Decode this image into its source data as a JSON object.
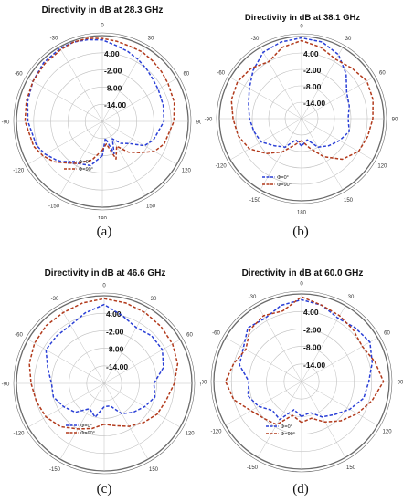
{
  "captions": [
    "(a)",
    "(b)",
    "(c)",
    "(d)"
  ],
  "colors": {
    "phi0": "#2a3fd6",
    "phi90": "#b23a1c",
    "grid": "#bfbfbf",
    "ring": "#6a6a6a"
  },
  "chart_data": [
    {
      "type": "polar-line",
      "title": "Directivity in dB at 28.3 GHz",
      "radial_labels": [
        "4.00",
        "-2.00",
        "-8.00",
        "-14.00"
      ],
      "r_range_db": [
        -20,
        10
      ],
      "angle_labels": [
        "0",
        "30",
        "60",
        "90",
        "120",
        "150",
        "180",
        "-150",
        "-120",
        "-90",
        "-60",
        "-30"
      ],
      "legend": [
        "Φ=0°",
        "Φ=90°"
      ],
      "series": [
        {
          "name": "Φ=0°",
          "theta_deg": [
            -180,
            -165,
            -150,
            -140,
            -130,
            -120,
            -110,
            -90,
            -75,
            -60,
            -45,
            -30,
            -20,
            -10,
            0,
            10,
            20,
            30,
            40,
            50,
            60,
            75,
            90,
            110,
            120,
            130,
            140,
            150,
            160,
            170,
            180
          ],
          "r_db": [
            -8,
            -4,
            -3,
            -1,
            1,
            3,
            4.5,
            6,
            7,
            8,
            9,
            9.5,
            9.5,
            9,
            8.5,
            7,
            6,
            5,
            4,
            3,
            2.5,
            2,
            1.5,
            -1,
            -3,
            -8,
            -10,
            -13,
            -8,
            -14,
            -8
          ]
        },
        {
          "name": "Φ=90°",
          "theta_deg": [
            -180,
            -165,
            -150,
            -140,
            -130,
            -120,
            -110,
            -90,
            -75,
            -60,
            -45,
            -30,
            -20,
            -10,
            0,
            10,
            20,
            30,
            40,
            50,
            60,
            75,
            90,
            110,
            120,
            130,
            140,
            150,
            160,
            170,
            180
          ],
          "r_db": [
            -10,
            -6,
            -3,
            -1,
            2,
            4,
            5.5,
            7,
            7.5,
            8,
            8.5,
            9,
            9.5,
            9.5,
            9,
            8.5,
            8,
            8,
            7.5,
            7,
            6.5,
            6,
            5,
            3,
            1,
            -3,
            -6,
            -10,
            -6,
            -12,
            -10
          ]
        }
      ]
    },
    {
      "type": "polar-line",
      "title": "Directivity in dB at 38.1 GHz",
      "radial_labels": [
        "4.00",
        "-2.00",
        "-8.00",
        "-14.00"
      ],
      "r_range_db": [
        -20,
        10
      ],
      "angle_labels": [
        "0",
        "30",
        "60",
        "90",
        "120",
        "150",
        "180",
        "-150",
        "-120",
        "-90",
        "-60",
        "-30"
      ],
      "legend": [
        "Φ=0°",
        "Φ=90°"
      ],
      "series": [
        {
          "name": "Φ=0°",
          "theta_deg": [
            -180,
            -165,
            -150,
            -135,
            -120,
            -105,
            -90,
            -75,
            -60,
            -45,
            -30,
            -15,
            0,
            15,
            30,
            45,
            60,
            75,
            90,
            105,
            120,
            135,
            150,
            165,
            180
          ],
          "r_db": [
            -10,
            -12,
            -8,
            -6,
            -3,
            -2,
            -1,
            0,
            2,
            5,
            8,
            9,
            9.5,
            9,
            7,
            3,
            -1,
            -2,
            -3,
            -2,
            -4,
            -6,
            -8,
            -12,
            -10
          ]
        },
        {
          "name": "Φ=90°",
          "theta_deg": [
            -180,
            -165,
            -150,
            -135,
            -120,
            -105,
            -90,
            -75,
            -60,
            -45,
            -30,
            -15,
            0,
            15,
            30,
            45,
            60,
            75,
            90,
            105,
            120,
            135,
            150,
            165,
            180
          ],
          "r_db": [
            -12,
            -10,
            -6,
            -2,
            2,
            4,
            5,
            6.5,
            7,
            6,
            4,
            7,
            8.5,
            7,
            5,
            6,
            7.5,
            7,
            6,
            5,
            4,
            1,
            -4,
            -9,
            -12
          ]
        }
      ]
    },
    {
      "type": "polar-line",
      "title": "Directivity in dB at 46.6 GHz",
      "radial_labels": [
        "4.00",
        "-2.00",
        "-8.00",
        "-14.00"
      ],
      "r_range_db": [
        -20,
        10
      ],
      "angle_labels": [
        "0",
        "30",
        "60",
        "90",
        "120",
        "150",
        "180",
        "-150",
        "-120",
        "-90",
        "-60",
        "-30"
      ],
      "legend": [
        "Φ=0°",
        "Φ=90°"
      ],
      "series": [
        {
          "name": "Φ=0°",
          "theta_deg": [
            -180,
            -165,
            -150,
            -135,
            -120,
            -105,
            -90,
            -75,
            -60,
            -45,
            -30,
            -15,
            0,
            15,
            30,
            45,
            60,
            75,
            90,
            105,
            120,
            135,
            150,
            165,
            180
          ],
          "r_db": [
            -12,
            -8,
            -10,
            -6,
            -4,
            -2,
            -2,
            0,
            3,
            3,
            3,
            5,
            7,
            4,
            2,
            3,
            3,
            1,
            -3,
            -2,
            -4,
            -6,
            -8,
            -12,
            -12
          ]
        },
        {
          "name": "Φ=90°",
          "theta_deg": [
            -180,
            -165,
            -150,
            -135,
            -120,
            -105,
            -90,
            -75,
            -60,
            -45,
            -30,
            -15,
            0,
            15,
            30,
            45,
            60,
            75,
            90,
            105,
            120,
            135,
            150,
            165,
            180
          ],
          "r_db": [
            -6,
            -4,
            -2,
            1,
            3,
            4,
            5,
            6.5,
            7.5,
            8,
            8,
            8.5,
            9,
            8.5,
            8,
            7.5,
            7,
            6,
            4,
            2,
            1,
            -1,
            -3,
            -5,
            -6
          ]
        }
      ]
    },
    {
      "type": "polar-line",
      "title": "Directivity in dB at 60.0 GHz",
      "radial_labels": [
        "4.00",
        "-2.00",
        "-8.00",
        "-14.00"
      ],
      "r_range_db": [
        -20,
        10
      ],
      "angle_labels": [
        "0",
        "30",
        "60",
        "90",
        "120",
        "150",
        "180",
        "-150",
        "-120",
        "-90",
        "-60",
        "-30"
      ],
      "legend": [
        "Φ=0°",
        "Φ=90°"
      ],
      "series": [
        {
          "name": "Φ=0°",
          "theta_deg": [
            -180,
            -165,
            -150,
            -135,
            -120,
            -105,
            -90,
            -75,
            -60,
            -45,
            -30,
            -15,
            0,
            15,
            30,
            45,
            60,
            75,
            90,
            105,
            120,
            135,
            150,
            165,
            180
          ],
          "r_db": [
            -8,
            -10,
            -5,
            -6,
            -3,
            -1,
            -2,
            2,
            3,
            6,
            5,
            7,
            8,
            7,
            5,
            6,
            7,
            5,
            3,
            2,
            -1,
            -4,
            -6,
            -9,
            -8
          ]
        },
        {
          "name": "Φ=90°",
          "theta_deg": [
            -180,
            -165,
            -150,
            -135,
            -120,
            -105,
            -90,
            -75,
            -60,
            -45,
            -30,
            -15,
            0,
            15,
            30,
            45,
            60,
            75,
            90,
            105,
            120,
            135,
            150,
            165,
            180
          ],
          "r_db": [
            -6,
            -8,
            -3,
            -2,
            0,
            4,
            6,
            4,
            2,
            5,
            6,
            5,
            9,
            7,
            6,
            5,
            4,
            6,
            8,
            5,
            2,
            -1,
            -4,
            -7,
            -6
          ]
        }
      ]
    }
  ]
}
